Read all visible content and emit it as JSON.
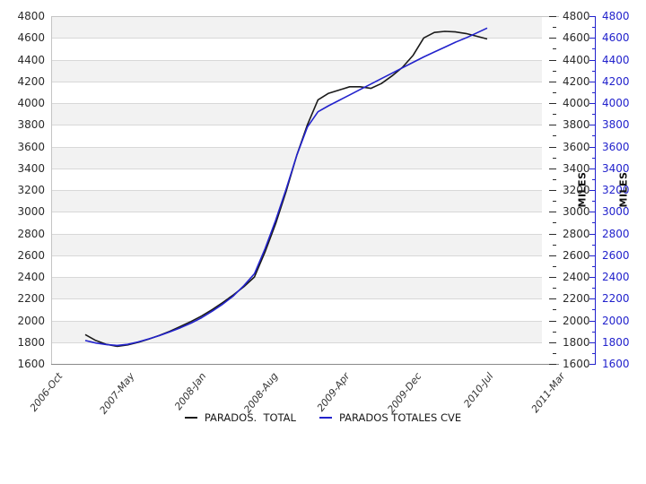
{
  "chart_data": {
    "type": "line",
    "title": "",
    "xlabel": "",
    "ylabel_left": "",
    "axis_titles": {
      "right_primary": "MILES",
      "right_secondary": "MILES"
    },
    "ylim": [
      1600,
      4800
    ],
    "y_ticks": [
      1600,
      1800,
      2000,
      2200,
      2400,
      2600,
      2800,
      3000,
      3200,
      3400,
      3600,
      3800,
      4000,
      4200,
      4400,
      4600,
      4800
    ],
    "x_tick_labels": [
      "2006-Oct",
      "2007-May",
      "2008-Jan",
      "2008-Aug",
      "2009-Apr",
      "2009-Dec",
      "2010-Jul",
      "2011-Mar"
    ],
    "grid": true,
    "band_color": "#f2f2f2",
    "gridline_color": "#d8d8d8",
    "legend_position": "bottom-center",
    "series": [
      {
        "name": "PARADOS.  TOTAL",
        "color": "#1a1a1a",
        "values": [
          1870,
          1815,
          1780,
          1762,
          1775,
          1798,
          1828,
          1862,
          1900,
          1945,
          1990,
          2040,
          2100,
          2165,
          2235,
          2310,
          2400,
          2630,
          2890,
          3190,
          3520,
          3800,
          4030,
          4090,
          4120,
          4150,
          4150,
          4135,
          4180,
          4250,
          4330,
          4440,
          4600,
          4650,
          4660,
          4655,
          4640,
          4615,
          4590
        ]
      },
      {
        "name": "PARADOS TOTALES CVE",
        "color": "#2222cc",
        "values": [
          1815,
          1792,
          1778,
          1770,
          1780,
          1802,
          1830,
          1860,
          1895,
          1932,
          1975,
          2025,
          2085,
          2150,
          2225,
          2320,
          2430,
          2660,
          2920,
          3210,
          3520,
          3780,
          3920,
          3975,
          4025,
          4075,
          4125,
          4175,
          4225,
          4275,
          4325,
          4375,
          4425,
          4470,
          4515,
          4560,
          4600,
          4645,
          4690
        ]
      }
    ]
  }
}
